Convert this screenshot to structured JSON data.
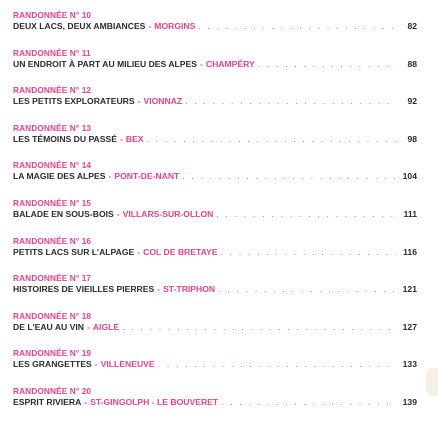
{
  "entries": [
    {
      "label": "RANDONNÉE N° 10",
      "title": "DEUX LACS, DEUX AMBIANCES",
      "separator": "-",
      "place": "MORGINS",
      "page": "82"
    },
    {
      "label": "RANDONNÉE N° 11",
      "title": "UN ENDROIT À PART AU MILIEU DES ALPES",
      "separator": "-",
      "place": "CHAMPÉRY",
      "page": "88"
    },
    {
      "label": "RANDONNÉE N° 12",
      "title": "LES PETITS EXPLORATEURS",
      "separator": "-",
      "place": "VIONNAZ",
      "page": "92"
    },
    {
      "label": "RANDONNÉE N° 13",
      "title": "LES TÉMOINS DU PASSÉ",
      "separator": "-",
      "place": "BEX",
      "page": "98"
    },
    {
      "label": "RANDONNÉE N° 14",
      "title": "LA MAGIE DES ALPES",
      "separator": "-",
      "place": "PONT-DE-NANT",
      "page": "104"
    },
    {
      "label": "RANDONNÉE N° 15",
      "title": "BALADE EN SOUS-BOIS",
      "separator": "-",
      "place": "VILLARS-SUR-OLLON",
      "page": "111"
    },
    {
      "label": "RANDONNÉE N° 16",
      "title": "PETITS LACS SUR L'ALPAGE",
      "separator": "-",
      "place": "COL DE BRETAYE",
      "page": "116"
    },
    {
      "label": "RANDONNÉE N° 17",
      "title": "HISTOIRES DE VIEILLES PIERRES",
      "separator": "-",
      "place": "ST-TRIPHON",
      "page": "121"
    },
    {
      "label": "RANDONNÉE N° 18",
      "title": "DE L'EAU AU VIN",
      "separator": "-",
      "place": "AIGLE",
      "page": "127"
    },
    {
      "label": "RANDONNÉE N° 19",
      "title": "LES GRANGETTES",
      "separator": "-",
      "place": "VILLENEUVE",
      "page": "133"
    },
    {
      "label": "RANDONNÉE N° 20",
      "title": "ESPRIT RIVIERA",
      "separator": "-",
      "place": "ST-GINGOLPH - LE BOUVERET",
      "page": "139"
    }
  ]
}
